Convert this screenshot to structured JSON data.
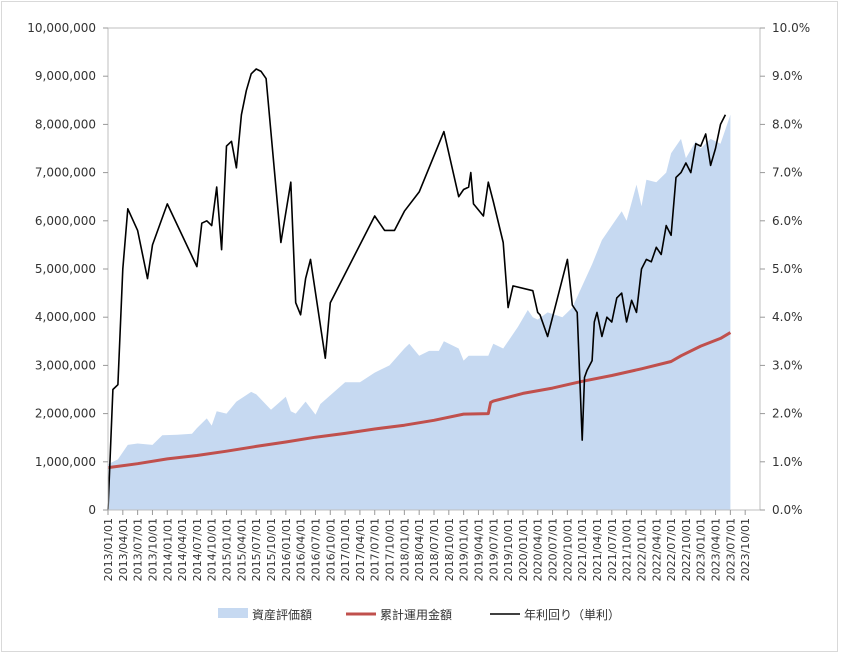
{
  "chart_data": {
    "type": "area+line",
    "title": "",
    "xlabel": "",
    "ylabel_left": "",
    "ylabel_right": "",
    "left_axis": {
      "min": 0,
      "max": 10000000,
      "ticks": [
        "0",
        "1,000,000",
        "2,000,000",
        "3,000,000",
        "4,000,000",
        "5,000,000",
        "6,000,000",
        "7,000,000",
        "8,000,000",
        "9,000,000",
        "10,000,000"
      ]
    },
    "right_axis": {
      "min": 0,
      "max": 10,
      "ticks": [
        "0.0%",
        "1.0%",
        "2.0%",
        "3.0%",
        "4.0%",
        "5.0%",
        "6.0%",
        "7.0%",
        "8.0%",
        "9.0%",
        "10.0%"
      ]
    },
    "x_ticks": [
      "2013/01/01",
      "2013/04/01",
      "2013/07/01",
      "2013/10/01",
      "2014/01/01",
      "2014/04/01",
      "2014/07/01",
      "2014/10/01",
      "2015/01/01",
      "2015/04/01",
      "2015/07/01",
      "2015/10/01",
      "2016/01/01",
      "2016/04/01",
      "2016/07/01",
      "2016/10/01",
      "2017/01/01",
      "2017/04/01",
      "2017/07/01",
      "2017/10/01",
      "2018/01/01",
      "2018/04/01",
      "2018/07/01",
      "2018/10/01",
      "2019/01/01",
      "2019/04/01",
      "2019/07/01",
      "2019/10/01",
      "2020/01/01",
      "2020/04/01",
      "2020/07/01",
      "2020/10/01",
      "2021/01/01",
      "2021/04/01",
      "2021/07/01",
      "2021/10/01",
      "2022/01/01",
      "2022/04/01",
      "2022/07/01",
      "2022/10/01",
      "2023/01/01",
      "2023/04/01",
      "2023/07/01",
      "2023/10/01"
    ],
    "legend_position": "bottom",
    "series": [
      {
        "name": "資産評価額",
        "type": "area",
        "axis": "left",
        "color": "#c6d9f1",
        "points": [
          [
            "2013/01/01",
            950000
          ],
          [
            "2013/03/01",
            1050000
          ],
          [
            "2013/05/01",
            1350000
          ],
          [
            "2013/07/01",
            1380000
          ],
          [
            "2013/10/01",
            1350000
          ],
          [
            "2013/12/01",
            1550000
          ],
          [
            "2014/03/01",
            1560000
          ],
          [
            "2014/06/01",
            1580000
          ],
          [
            "2014/07/01",
            1700000
          ],
          [
            "2014/09/01",
            1900000
          ],
          [
            "2014/10/01",
            1750000
          ],
          [
            "2014/11/01",
            2050000
          ],
          [
            "2015/01/01",
            2000000
          ],
          [
            "2015/03/01",
            2250000
          ],
          [
            "2015/06/01",
            2450000
          ],
          [
            "2015/07/01",
            2400000
          ],
          [
            "2015/10/01",
            2080000
          ],
          [
            "2016/01/01",
            2350000
          ],
          [
            "2016/02/01",
            2050000
          ],
          [
            "2016/03/01",
            2000000
          ],
          [
            "2016/05/01",
            2250000
          ],
          [
            "2016/07/01",
            1980000
          ],
          [
            "2016/08/01",
            2200000
          ],
          [
            "2017/01/01",
            2650000
          ],
          [
            "2017/04/01",
            2650000
          ],
          [
            "2017/07/01",
            2850000
          ],
          [
            "2017/10/01",
            3000000
          ],
          [
            "2018/01/01",
            3350000
          ],
          [
            "2018/02/01",
            3450000
          ],
          [
            "2018/04/01",
            3200000
          ],
          [
            "2018/06/01",
            3300000
          ],
          [
            "2018/08/01",
            3300000
          ],
          [
            "2018/09/01",
            3500000
          ],
          [
            "2018/12/01",
            3350000
          ],
          [
            "2019/01/01",
            3100000
          ],
          [
            "2019/02/01",
            3200000
          ],
          [
            "2019/06/01",
            3200000
          ],
          [
            "2019/07/01",
            3450000
          ],
          [
            "2019/09/01",
            3350000
          ],
          [
            "2019/12/01",
            3800000
          ],
          [
            "2020/02/01",
            4150000
          ],
          [
            "2020/03/01",
            4000000
          ],
          [
            "2020/04/01",
            3950000
          ],
          [
            "2020/06/01",
            4100000
          ],
          [
            "2020/09/01",
            4000000
          ],
          [
            "2020/11/01",
            4200000
          ],
          [
            "2021/01/01",
            4650000
          ],
          [
            "2021/03/01",
            5100000
          ],
          [
            "2021/05/01",
            5600000
          ],
          [
            "2021/07/01",
            5900000
          ],
          [
            "2021/09/01",
            6200000
          ],
          [
            "2021/10/01",
            6000000
          ],
          [
            "2021/12/01",
            6750000
          ],
          [
            "2022/01/01",
            6300000
          ],
          [
            "2022/02/01",
            6850000
          ],
          [
            "2022/04/01",
            6800000
          ],
          [
            "2022/06/01",
            7000000
          ],
          [
            "2022/07/01",
            7400000
          ],
          [
            "2022/09/01",
            7700000
          ],
          [
            "2022/10/01",
            7300000
          ],
          [
            "2022/12/01",
            7650000
          ],
          [
            "2023/01/01",
            7500000
          ],
          [
            "2023/03/01",
            7700000
          ],
          [
            "2023/05/01",
            7600000
          ],
          [
            "2023/07/01",
            8200000
          ]
        ]
      },
      {
        "name": "累計運用金額",
        "type": "line",
        "axis": "left",
        "color": "#c0504d",
        "points": [
          [
            "2013/01/01",
            880000
          ],
          [
            "2013/07/01",
            960000
          ],
          [
            "2014/01/01",
            1060000
          ],
          [
            "2014/07/01",
            1130000
          ],
          [
            "2015/01/01",
            1220000
          ],
          [
            "2015/07/01",
            1320000
          ],
          [
            "2016/01/01",
            1410000
          ],
          [
            "2016/07/01",
            1510000
          ],
          [
            "2017/01/01",
            1590000
          ],
          [
            "2017/07/01",
            1680000
          ],
          [
            "2018/01/01",
            1760000
          ],
          [
            "2018/07/01",
            1860000
          ],
          [
            "2019/01/01",
            1990000
          ],
          [
            "2019/06/01",
            2000000
          ],
          [
            "2019/06/15",
            2230000
          ],
          [
            "2019/07/01",
            2260000
          ],
          [
            "2020/01/01",
            2420000
          ],
          [
            "2020/07/01",
            2530000
          ],
          [
            "2021/01/01",
            2670000
          ],
          [
            "2021/07/01",
            2790000
          ],
          [
            "2022/01/01",
            2930000
          ],
          [
            "2022/07/01",
            3080000
          ],
          [
            "2022/09/01",
            3200000
          ],
          [
            "2023/01/01",
            3400000
          ],
          [
            "2023/05/01",
            3560000
          ],
          [
            "2023/07/01",
            3680000
          ]
        ]
      },
      {
        "name": "年利回り（単利）",
        "type": "line",
        "axis": "right",
        "color": "#000000",
        "points": [
          [
            "2013/01/01",
            0.0
          ],
          [
            "2013/02/01",
            2.5
          ],
          [
            "2013/03/01",
            2.6
          ],
          [
            "2013/04/01",
            5.0
          ],
          [
            "2013/05/01",
            6.25
          ],
          [
            "2013/07/01",
            5.8
          ],
          [
            "2013/09/01",
            4.8
          ],
          [
            "2013/10/01",
            5.5
          ],
          [
            "2014/01/01",
            6.35
          ],
          [
            "2014/07/01",
            5.05
          ],
          [
            "2014/08/01",
            5.95
          ],
          [
            "2014/09/01",
            6.0
          ],
          [
            "2014/10/01",
            5.9
          ],
          [
            "2014/11/01",
            6.7
          ],
          [
            "2014/12/01",
            5.4
          ],
          [
            "2015/01/01",
            7.55
          ],
          [
            "2015/02/01",
            7.65
          ],
          [
            "2015/03/01",
            7.1
          ],
          [
            "2015/04/01",
            8.2
          ],
          [
            "2015/05/01",
            8.7
          ],
          [
            "2015/06/01",
            9.05
          ],
          [
            "2015/07/01",
            9.15
          ],
          [
            "2015/08/01",
            9.1
          ],
          [
            "2015/09/01",
            8.95
          ],
          [
            "2015/12/01",
            5.55
          ],
          [
            "2016/02/01",
            6.8
          ],
          [
            "2016/03/01",
            4.3
          ],
          [
            "2016/04/01",
            4.05
          ],
          [
            "2016/05/01",
            4.8
          ],
          [
            "2016/06/01",
            5.2
          ],
          [
            "2016/09/01",
            3.15
          ],
          [
            "2016/10/01",
            4.3
          ],
          [
            "2017/07/01",
            6.1
          ],
          [
            "2017/09/01",
            5.8
          ],
          [
            "2017/11/01",
            5.8
          ],
          [
            "2018/01/01",
            6.2
          ],
          [
            "2018/04/01",
            6.6
          ],
          [
            "2018/09/01",
            7.85
          ],
          [
            "2018/12/01",
            6.5
          ],
          [
            "2019/01/01",
            6.65
          ],
          [
            "2019/02/01",
            6.7
          ],
          [
            "2019/02/15",
            7.0
          ],
          [
            "2019/03/01",
            6.35
          ],
          [
            "2019/05/01",
            6.1
          ],
          [
            "2019/06/01",
            6.8
          ],
          [
            "2019/07/01",
            6.4
          ],
          [
            "2019/09/01",
            5.55
          ],
          [
            "2019/10/01",
            4.2
          ],
          [
            "2019/11/01",
            4.65
          ],
          [
            "2020/03/01",
            4.55
          ],
          [
            "2020/04/01",
            4.1
          ],
          [
            "2020/04/15",
            4.05
          ],
          [
            "2020/06/01",
            3.6
          ],
          [
            "2020/08/01",
            4.4
          ],
          [
            "2020/10/01",
            5.2
          ],
          [
            "2020/11/01",
            4.25
          ],
          [
            "2020/12/01",
            4.1
          ],
          [
            "2021/01/01",
            1.45
          ],
          [
            "2021/01/15",
            2.75
          ],
          [
            "2021/02/01",
            2.9
          ],
          [
            "2021/03/01",
            3.1
          ],
          [
            "2021/03/15",
            3.9
          ],
          [
            "2021/04/01",
            4.1
          ],
          [
            "2021/05/01",
            3.6
          ],
          [
            "2021/06/01",
            4.0
          ],
          [
            "2021/07/01",
            3.9
          ],
          [
            "2021/08/01",
            4.4
          ],
          [
            "2021/09/01",
            4.5
          ],
          [
            "2021/10/01",
            3.9
          ],
          [
            "2021/11/01",
            4.35
          ],
          [
            "2021/12/01",
            4.1
          ],
          [
            "2022/01/01",
            5.0
          ],
          [
            "2022/02/01",
            5.2
          ],
          [
            "2022/03/01",
            5.15
          ],
          [
            "2022/04/01",
            5.45
          ],
          [
            "2022/05/01",
            5.3
          ],
          [
            "2022/06/01",
            5.9
          ],
          [
            "2022/07/01",
            5.7
          ],
          [
            "2022/08/01",
            6.9
          ],
          [
            "2022/09/01",
            7.0
          ],
          [
            "2022/10/01",
            7.2
          ],
          [
            "2022/11/01",
            7.0
          ],
          [
            "2022/12/01",
            7.6
          ],
          [
            "2023/01/01",
            7.55
          ],
          [
            "2023/02/01",
            7.8
          ],
          [
            "2023/03/01",
            7.15
          ],
          [
            "2023/04/01",
            7.5
          ],
          [
            "2023/05/01",
            8.0
          ],
          [
            "2023/06/01",
            8.2
          ]
        ]
      }
    ]
  }
}
